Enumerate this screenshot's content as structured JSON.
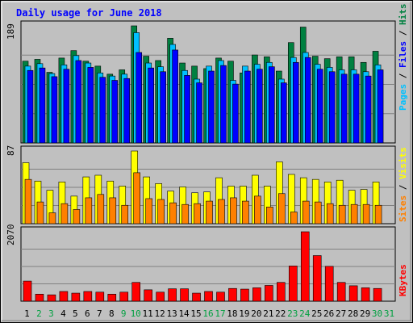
{
  "chart_data": {
    "type": "bar",
    "title": "Daily usage for June 2018",
    "categories": [
      "1",
      "2",
      "3",
      "4",
      "5",
      "6",
      "7",
      "8",
      "9",
      "10",
      "11",
      "12",
      "13",
      "14",
      "15",
      "16",
      "17",
      "18",
      "19",
      "20",
      "21",
      "22",
      "23",
      "24",
      "25",
      "26",
      "27",
      "28",
      "29",
      "30",
      "31"
    ],
    "weekend_days": [
      "2",
      "3",
      "9",
      "10",
      "16",
      "17",
      "23",
      "24",
      "30",
      "31"
    ],
    "panels": [
      {
        "id": "hits",
        "ymax_label": "189",
        "ymax": 189,
        "legend": [
          "Pages",
          "Files",
          "Hits"
        ],
        "series": [
          {
            "name": "Hits",
            "color": "#008040",
            "values": [
              132,
              135,
              114,
              137,
              149,
              132,
              124,
              111,
              118,
              189,
              140,
              133,
              169,
              129,
              124,
              120,
              137,
              132,
              113,
              142,
              139,
              116,
              162,
              187,
              140,
              136,
              139,
              139,
              130,
              148,
              0
            ]
          },
          {
            "name": "Files",
            "color": "#00C0FF",
            "values": [
              124,
              128,
              112,
              126,
              141,
              129,
              113,
              108,
              111,
              178,
              129,
              123,
              159,
              117,
              103,
              124,
              133,
              101,
              124,
              127,
              130,
              103,
              138,
              146,
              127,
              122,
              118,
              118,
              115,
              126,
              0
            ]
          },
          {
            "name": "Pages",
            "color": "#0000FF",
            "values": [
              117,
              121,
              107,
              119,
              133,
              122,
              106,
              101,
              104,
              146,
              121,
              115,
              150,
              109,
              97,
              116,
              125,
              95,
              116,
              119,
              123,
              97,
              130,
              138,
              119,
              115,
              111,
              111,
              108,
              118,
              0
            ]
          }
        ]
      },
      {
        "id": "visits",
        "ymax_label": "87",
        "ymax": 87,
        "legend": [
          "Sites",
          "Visits"
        ],
        "series": [
          {
            "name": "Visits",
            "color": "#FFFF00",
            "values": [
              73,
              51,
              40,
              50,
              33,
              56,
              58,
              51,
              45,
              87,
              56,
              48,
              39,
              44,
              37,
              38,
              55,
              45,
              45,
              58,
              45,
              74,
              59,
              55,
              53,
              50,
              52,
              40,
              41,
              50,
              0
            ]
          },
          {
            "name": "Sites",
            "color": "#FF8000",
            "values": [
              53,
              26,
              13,
              24,
              17,
              31,
              35,
              31,
              22,
              61,
              30,
              29,
              25,
              23,
              24,
              27,
              29,
              31,
              27,
              33,
              20,
              36,
              14,
              27,
              26,
              24,
              22,
              23,
              23,
              22,
              0
            ]
          }
        ]
      },
      {
        "id": "kbytes",
        "ymax_label": "2070",
        "ymax": 2070,
        "legend": [
          "KBytes"
        ],
        "series": [
          {
            "name": "KBytes",
            "color": "#FF0000",
            "values": [
              600,
              210,
              190,
              290,
              240,
              290,
              270,
              210,
              270,
              560,
              340,
              270,
              370,
              370,
              240,
              290,
              270,
              380,
              360,
              400,
              470,
              560,
              1050,
              2070,
              1360,
              1040,
              560,
              460,
              400,
              380,
              0
            ]
          }
        ]
      }
    ],
    "colors": {
      "background": "#C0C0C0",
      "title": "#0000FF",
      "weekday_label": "#000000",
      "weekend_label": "#00A040"
    }
  }
}
